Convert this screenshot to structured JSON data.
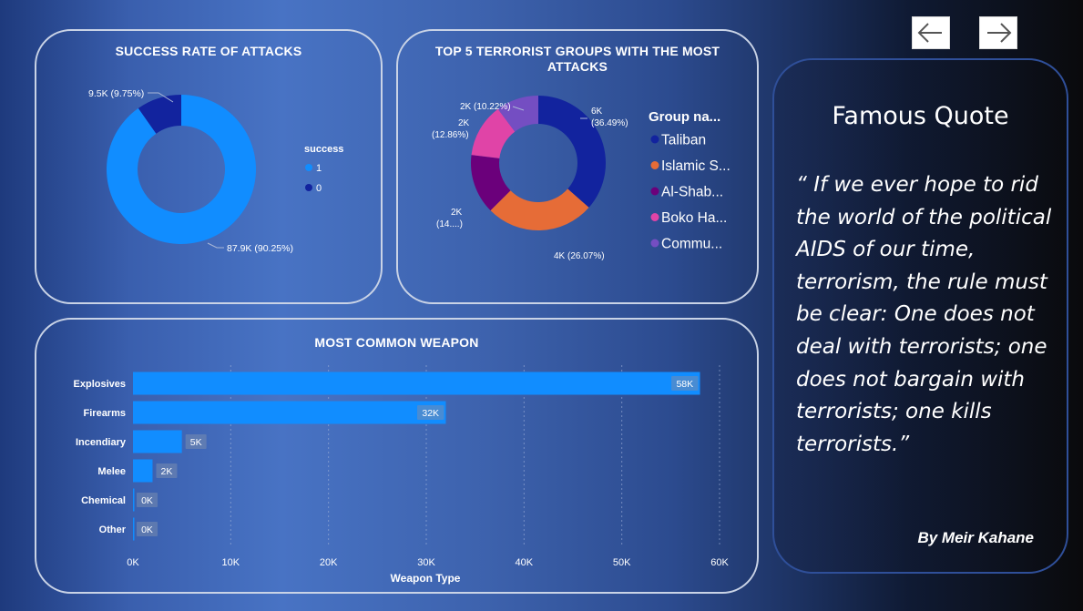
{
  "navigation": {
    "back_icon": "arrow-left-icon",
    "forward_icon": "arrow-right-icon"
  },
  "success_card": {
    "title": "SUCCESS RATE OF ATTACKS",
    "legend_title": "success",
    "legend": [
      {
        "label": "1",
        "color": "#118dff"
      },
      {
        "label": "0",
        "color": "#12239e"
      }
    ],
    "labels": [
      "87.9K (90.25%)",
      "9.5K (9.75%)"
    ]
  },
  "groups_card": {
    "title_line1": "TOP 5 TERRORIST GROUPS WITH THE MOST",
    "title_line2": "ATTACKS",
    "legend_title": "Group na...",
    "legend": [
      {
        "label": "Taliban",
        "color": "#12239e"
      },
      {
        "label": "Islamic S...",
        "color": "#e66c37"
      },
      {
        "label": "Al-Shab...",
        "color": "#6b007b"
      },
      {
        "label": "Boko Ha...",
        "color": "#e044a7"
      },
      {
        "label": "Commu...",
        "color": "#744ec2"
      }
    ],
    "labels": {
      "taliban": [
        "6K",
        "(36.49%)"
      ],
      "islamic": [
        "4K (26.07%)"
      ],
      "alshabaab": [
        "2K",
        "(14....)"
      ],
      "boko": [
        "2K",
        "(12.86%)"
      ],
      "commu": [
        "2K (10.22%)"
      ]
    }
  },
  "weapon_card": {
    "title": "MOST COMMON WEAPON",
    "x_axis_title": "Weapon Type",
    "x_ticks": [
      "0K",
      "10K",
      "20K",
      "30K",
      "40K",
      "50K",
      "60K"
    ],
    "bar_color": "#118dff"
  },
  "quote": {
    "title": "Famous Quote",
    "text": "“ If we ever hope to rid the world of the political AIDS of our time, terrorism, the rule must be clear: One does not deal with terrorists; one does not bargain with terrorists; one kills terrorists.”",
    "author": "By  Meir Kahane"
  },
  "chart_data": [
    {
      "type": "pie",
      "title": "SUCCESS RATE OF ATTACKS",
      "legend_title": "success",
      "legend_position": "right",
      "categories": [
        "1",
        "0"
      ],
      "values": [
        87900,
        9500
      ],
      "percentages": [
        90.25,
        9.75
      ],
      "data_labels": [
        "87.9K (90.25%)",
        "9.5K (9.75%)"
      ],
      "colors": [
        "#118dff",
        "#12239e"
      ]
    },
    {
      "type": "pie",
      "title": "TOP 5 TERRORIST GROUPS WITH THE MOST ATTACKS",
      "legend_title": "Group na...",
      "legend_position": "right",
      "categories": [
        "Taliban",
        "Islamic S...",
        "Al-Shab...",
        "Boko Ha...",
        "Commu..."
      ],
      "values": [
        6000,
        4000,
        2000,
        2000,
        2000
      ],
      "percentages": [
        36.49,
        26.07,
        14.36,
        12.86,
        10.22
      ],
      "colors": [
        "#12239e",
        "#e66c37",
        "#6b007b",
        "#e044a7",
        "#744ec2"
      ]
    },
    {
      "type": "bar",
      "orientation": "horizontal",
      "title": "MOST COMMON WEAPON",
      "xlabel": "Weapon Type",
      "ylabel": "",
      "categories": [
        "Explosives",
        "Firearms",
        "Incendiary",
        "Melee",
        "Chemical",
        "Other"
      ],
      "values": [
        58000,
        32000,
        5000,
        2000,
        0,
        0
      ],
      "data_labels": [
        "58K",
        "32K",
        "5K",
        "2K",
        "0K",
        "0K"
      ],
      "xlim": [
        0,
        60000
      ],
      "grid": true,
      "color": "#118dff"
    }
  ]
}
